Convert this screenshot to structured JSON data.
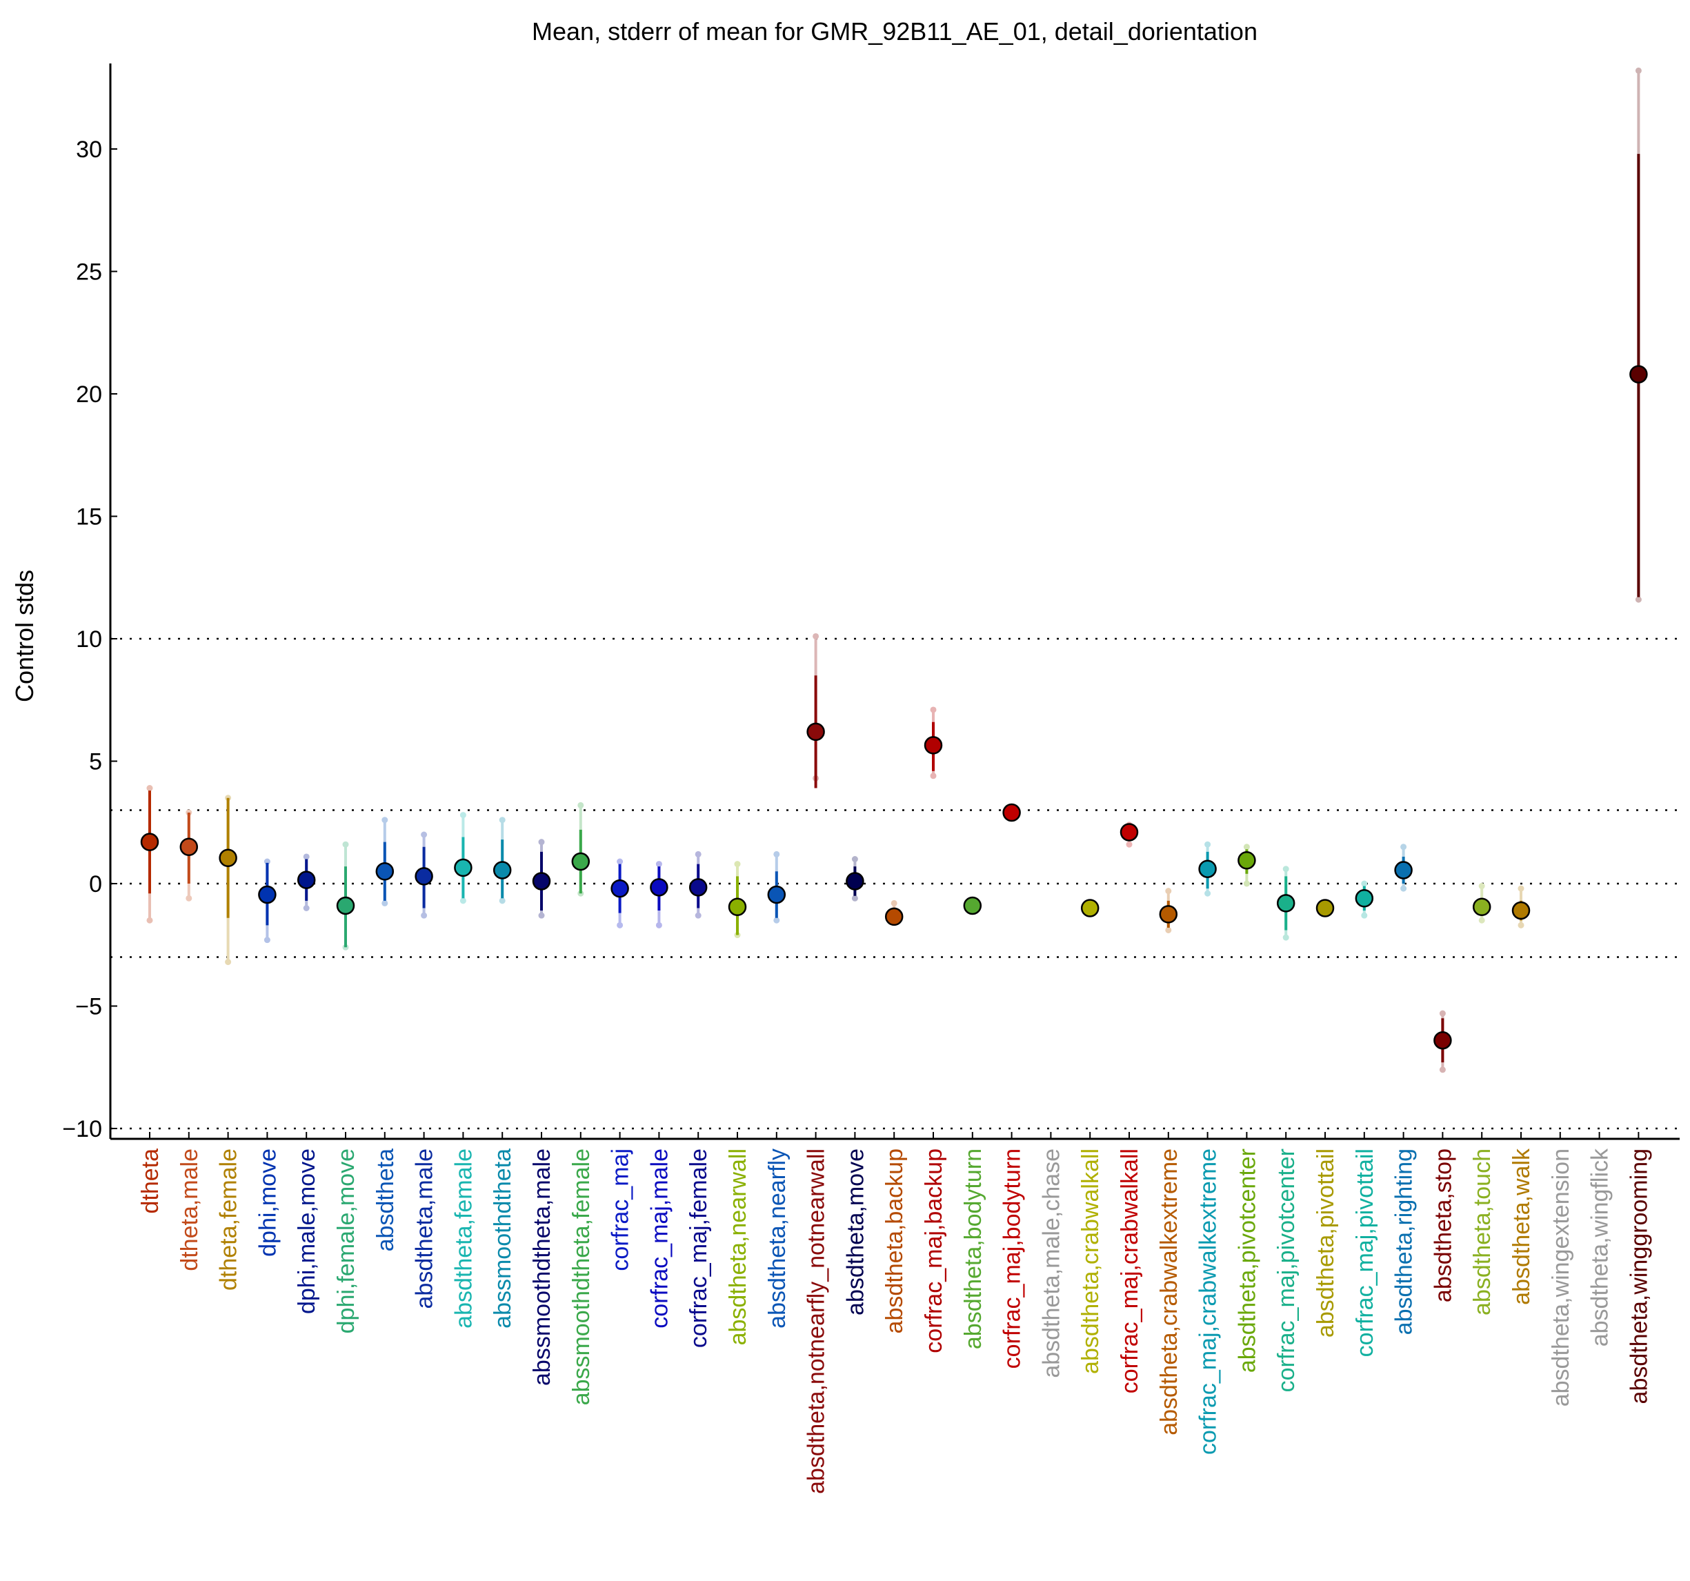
{
  "chart_data": {
    "type": "scatter",
    "title": "Mean, stderr of mean for GMR_92B11_AE_01, detail_dorientation",
    "xlabel": "",
    "ylabel": "Control stds",
    "ylim": [
      -10.5,
      33.5
    ],
    "yticks": [
      -10,
      -5,
      0,
      5,
      10,
      15,
      20,
      25,
      30
    ],
    "ytick_labels": [
      "−10",
      "−5",
      "0",
      "5",
      "10",
      "15",
      "20",
      "25",
      "30"
    ],
    "reference_lines": [
      -10,
      -3,
      0,
      3,
      10
    ],
    "grid": false,
    "categories": [
      {
        "label": "dtheta",
        "color": "#b52a00",
        "mean": 1.7,
        "se_low": -0.4,
        "se_high": 3.8,
        "std_low": -1.5,
        "std_high": 3.9
      },
      {
        "label": "dtheta,male",
        "color": "#c24a1a",
        "mean": 1.5,
        "se_low": 0.0,
        "se_high": 2.9,
        "std_low": -0.6,
        "std_high": 2.9
      },
      {
        "label": "dtheta,female",
        "color": "#b08000",
        "mean": 1.05,
        "se_low": -1.4,
        "se_high": 3.5,
        "std_low": -3.2,
        "std_high": 3.5
      },
      {
        "label": "dphi,move",
        "color": "#0033b0",
        "mean": -0.45,
        "se_low": -1.7,
        "se_high": 0.85,
        "std_low": -2.3,
        "std_high": 0.9
      },
      {
        "label": "dphi,male,move",
        "color": "#00168c",
        "mean": 0.15,
        "se_low": -0.7,
        "se_high": 1.0,
        "std_low": -1.0,
        "std_high": 1.1
      },
      {
        "label": "dphi,female,move",
        "color": "#2aa870",
        "mean": -0.9,
        "se_low": -2.6,
        "se_high": 0.7,
        "std_low": -2.6,
        "std_high": 1.6
      },
      {
        "label": "absdtheta",
        "color": "#0a55b5",
        "mean": 0.5,
        "se_low": -0.7,
        "se_high": 1.7,
        "std_low": -0.8,
        "std_high": 2.6
      },
      {
        "label": "absdtheta,male",
        "color": "#0a2ba0",
        "mean": 0.3,
        "se_low": -1.0,
        "se_high": 1.5,
        "std_low": -1.3,
        "std_high": 2.0
      },
      {
        "label": "absdtheta,female",
        "color": "#19b5b0",
        "mean": 0.65,
        "se_low": -0.6,
        "se_high": 1.9,
        "std_low": -0.7,
        "std_high": 2.8
      },
      {
        "label": "abssmoothdtheta",
        "color": "#0a8aab",
        "mean": 0.55,
        "se_low": -0.6,
        "se_high": 1.8,
        "std_low": -0.7,
        "std_high": 2.6
      },
      {
        "label": "abssmoothdtheta,male",
        "color": "#06066a",
        "mean": 0.1,
        "se_low": -1.1,
        "se_high": 1.3,
        "std_low": -1.3,
        "std_high": 1.7
      },
      {
        "label": "abssmoothdtheta,female",
        "color": "#3aa84a",
        "mean": 0.9,
        "se_low": -0.4,
        "se_high": 2.2,
        "std_low": -0.4,
        "std_high": 3.2
      },
      {
        "label": "corfrac_maj",
        "color": "#0a1ac5",
        "mean": -0.2,
        "se_low": -1.2,
        "se_high": 0.8,
        "std_low": -1.7,
        "std_high": 0.9
      },
      {
        "label": "corfrac_maj,male",
        "color": "#0a0ac0",
        "mean": -0.15,
        "se_low": -1.1,
        "se_high": 0.7,
        "std_low": -1.7,
        "std_high": 0.8
      },
      {
        "label": "corfrac_maj,female",
        "color": "#0a0a8c",
        "mean": -0.15,
        "se_low": -1.0,
        "se_high": 0.8,
        "std_low": -1.3,
        "std_high": 1.2
      },
      {
        "label": "absdtheta,nearwall",
        "color": "#8ab000",
        "mean": -0.95,
        "se_low": -2.1,
        "se_high": 0.3,
        "std_low": -2.1,
        "std_high": 0.8
      },
      {
        "label": "absdtheta,nearfly",
        "color": "#0a55b5",
        "mean": -0.45,
        "se_low": -1.4,
        "se_high": 0.5,
        "std_low": -1.5,
        "std_high": 1.2
      },
      {
        "label": "absdtheta,notnearfly_notnearwall",
        "color": "#8a0a0a",
        "mean": 6.2,
        "se_low": 3.9,
        "se_high": 8.5,
        "std_low": 4.3,
        "std_high": 10.1
      },
      {
        "label": "absdtheta,move",
        "color": "#000050",
        "mean": 0.1,
        "se_low": -0.5,
        "se_high": 0.7,
        "std_low": -0.6,
        "std_high": 1.0
      },
      {
        "label": "absdtheta,backup",
        "color": "#b54a00",
        "mean": -1.35,
        "se_low": -1.35,
        "se_high": -1.35,
        "std_low": -1.35,
        "std_high": -0.8
      },
      {
        "label": "corfrac_maj,backup",
        "color": "#b00000",
        "mean": 5.65,
        "se_low": 4.6,
        "se_high": 6.6,
        "std_low": 4.4,
        "std_high": 7.1
      },
      {
        "label": "absdtheta,bodyturn",
        "color": "#55a830",
        "mean": -0.9,
        "se_low": -0.9,
        "se_high": -0.9,
        "std_low": -0.9,
        "std_high": -0.9
      },
      {
        "label": "corfrac_maj,bodyturn",
        "color": "#c00000",
        "mean": 2.9,
        "se_low": 2.9,
        "se_high": 2.9,
        "std_low": 2.9,
        "std_high": 2.9
      },
      {
        "label": "absdtheta,male,chase",
        "color": "#999999",
        "mean": null,
        "se_low": null,
        "se_high": null,
        "std_low": null,
        "std_high": null
      },
      {
        "label": "absdtheta,crabwalkall",
        "color": "#b0b000",
        "mean": -1.0,
        "se_low": -1.0,
        "se_high": -1.0,
        "std_low": -1.0,
        "std_high": -1.0
      },
      {
        "label": "corfrac_maj,crabwalkall",
        "color": "#c00000",
        "mean": 2.1,
        "se_low": 1.9,
        "se_high": 2.3,
        "std_low": 1.6,
        "std_high": 2.4
      },
      {
        "label": "absdtheta,crabwalkextreme",
        "color": "#b55a00",
        "mean": -1.25,
        "se_low": -1.8,
        "se_high": -0.7,
        "std_low": -1.9,
        "std_high": -0.3
      },
      {
        "label": "corfrac_maj,crabwalkextreme",
        "color": "#0a9ab0",
        "mean": 0.6,
        "se_low": -0.2,
        "se_high": 1.3,
        "std_low": -0.4,
        "std_high": 1.6
      },
      {
        "label": "absdtheta,pivotcenter",
        "color": "#6aa80a",
        "mean": 0.95,
        "se_low": 0.4,
        "se_high": 1.4,
        "std_low": 0.0,
        "std_high": 1.5
      },
      {
        "label": "corfrac_maj,pivotcenter",
        "color": "#1ab08a",
        "mean": -0.8,
        "se_low": -1.9,
        "se_high": 0.3,
        "std_low": -2.2,
        "std_high": 0.6
      },
      {
        "label": "absdtheta,pivottail",
        "color": "#a89a00",
        "mean": -1.0,
        "se_low": -1.0,
        "se_high": -1.0,
        "std_low": -1.0,
        "std_high": -1.0
      },
      {
        "label": "corfrac_maj,pivottail",
        "color": "#10b0a0",
        "mean": -0.6,
        "se_low": -1.1,
        "se_high": -0.1,
        "std_low": -1.3,
        "std_high": 0.0
      },
      {
        "label": "absdtheta,righting",
        "color": "#0a70b0",
        "mean": 0.55,
        "se_low": 0.0,
        "se_high": 1.1,
        "std_low": -0.2,
        "std_high": 1.5
      },
      {
        "label": "absdtheta,stop",
        "color": "#7a0000",
        "mean": -6.4,
        "se_low": -7.3,
        "se_high": -5.5,
        "std_low": -7.6,
        "std_high": -5.3
      },
      {
        "label": "absdtheta,touch",
        "color": "#8ab020",
        "mean": -0.95,
        "se_low": -1.3,
        "se_high": -0.6,
        "std_low": -1.5,
        "std_high": -0.1
      },
      {
        "label": "absdtheta,walk",
        "color": "#b07a00",
        "mean": -1.1,
        "se_low": -1.5,
        "se_high": -0.7,
        "std_low": -1.7,
        "std_high": -0.2
      },
      {
        "label": "absdtheta,wingextension",
        "color": "#999999",
        "mean": null,
        "se_low": null,
        "se_high": null,
        "std_low": null,
        "std_high": null
      },
      {
        "label": "absdtheta,wingflick",
        "color": "#999999",
        "mean": null,
        "se_low": null,
        "se_high": null,
        "std_low": null,
        "std_high": null
      },
      {
        "label": "absdtheta,winggrooming",
        "color": "#5a0000",
        "mean": 20.8,
        "se_low": 11.7,
        "se_high": 29.8,
        "std_low": 11.6,
        "std_high": 33.2
      }
    ]
  }
}
